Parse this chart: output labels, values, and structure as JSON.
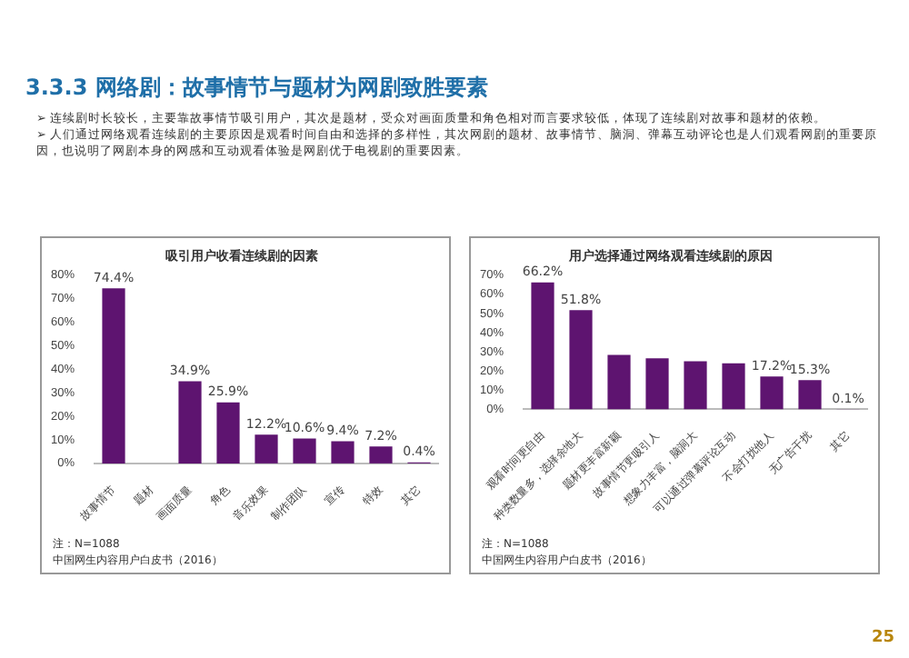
{
  "chart_data": [
    {
      "type": "bar",
      "title": "吸引用户收看连续剧的因素",
      "categories": [
        "故事情节",
        "题材",
        "画面质量",
        "角色",
        "音乐效果",
        "制作团队",
        "宣传",
        "特效",
        "其它"
      ],
      "values": [
        74.4,
        null,
        34.9,
        25.9,
        12.2,
        10.6,
        9.4,
        7.2,
        0.4
      ],
      "value_labels": [
        "74.4%",
        null,
        "34.9%",
        "25.9%",
        "12.2%",
        "10.6%",
        "9.4%",
        "7.2%",
        "0.4%"
      ],
      "color": "#5e1470",
      "ylim": [
        0,
        80
      ],
      "yticks": [
        {
          "value": 0,
          "label": "0%"
        },
        {
          "value": 10,
          "label": "10%"
        },
        {
          "value": 20,
          "label": "20%"
        },
        {
          "value": 30,
          "label": "30%"
        },
        {
          "value": 40,
          "label": "40%"
        },
        {
          "value": 50,
          "label": "50%"
        },
        {
          "value": 60,
          "label": "60%"
        },
        {
          "value": 70,
          "label": "70%"
        },
        {
          "value": 80,
          "label": "80%"
        }
      ],
      "grid": false,
      "annotations": [
        "3.3.3 网络剧：故事情节与题材为网剧致胜要素",
        "➢ 连续剧时长较长，主要靠故事情节吸引用户，其次是题材，受众对画面质量和角色相对而言要求较低，体现了连续剧对故事和题材的依赖。",
        "➢ 人们通过网络观看连续剧的主要原因是观看时间自由和选择的多样性，其次网剧的题材、故事情节、脑洞、弹幕互动评论也是人们观看网剧的重要原因，也说明了网剧本身的网感和互动观看体验是网剧优于电视剧的重要因素。",
        "注：N=1088",
        "中国网生内容用户白皮书（2016）"
      ]
    },
    {
      "type": "bar",
      "title": "用户选择通过网络观看连续剧的原因",
      "categories": [
        "观看时间更自由",
        "种类数量多，选择余地大",
        "题材更丰富新颖",
        "故事情节更吸引人",
        "想象力丰富，脑洞大",
        "可以通过弹幕评论互动",
        "不会打扰他人",
        "无广告干扰",
        "其它"
      ],
      "values": [
        66.2,
        51.8,
        28.4,
        26.6,
        25.1,
        24,
        17.2,
        15.3,
        0.1
      ],
      "value_labels": [
        "66.2%",
        "51.8%",
        null,
        null,
        null,
        null,
        "17.2%",
        "15.3%",
        "0.1%"
      ],
      "color": "#5e1470",
      "ylim": [
        0,
        70
      ],
      "yticks": [
        {
          "value": 0,
          "label": "0%"
        },
        {
          "value": 10,
          "label": "10%"
        },
        {
          "value": 20,
          "label": "20%"
        },
        {
          "value": 30,
          "label": "30%"
        },
        {
          "value": 40,
          "label": "40%"
        },
        {
          "value": 50,
          "label": "50%"
        },
        {
          "value": 60,
          "label": "60%"
        },
        {
          "value": 70,
          "label": "70%"
        }
      ],
      "grid": false,
      "annotations": [
        "注：N=1088",
        "中国网生内容用户白皮书（2016）",
        "25"
      ]
    }
  ]
}
